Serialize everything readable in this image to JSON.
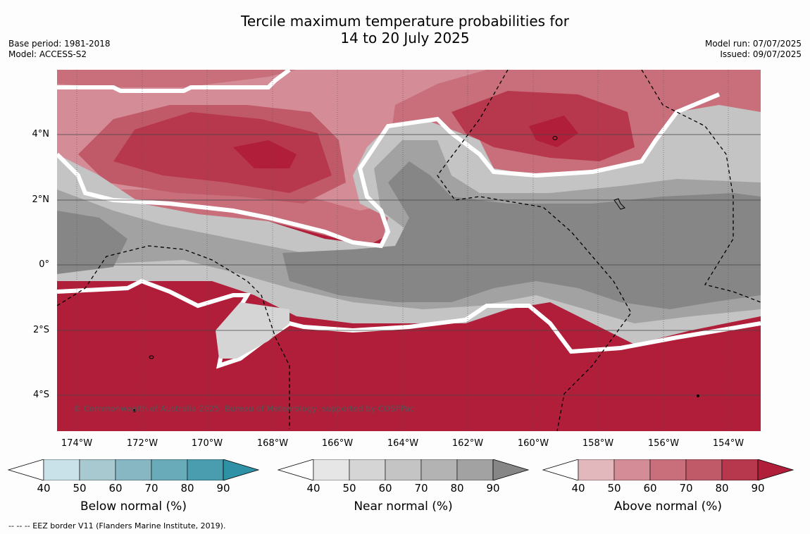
{
  "title_line1": "Tercile maximum temperature probabilities for",
  "title_line2": "14 to 20 July 2025",
  "base_period": "Base period: 1981-2018",
  "model": "Model: ACCESS-S2",
  "model_run": "Model run: 07/07/2025",
  "issued": "Issued: 09/07/2025",
  "copyright": "© Commonwealth of Australia 2025, Bureau of Meteorology, supported by COSPPac",
  "footnote": "--  --  -- EEZ border V11 (Flanders Marine Institute, 2019).",
  "lat_labels": [
    "4°N",
    "2°N",
    "0°",
    "2°S",
    "4°S"
  ],
  "lon_labels": [
    "174°W",
    "172°W",
    "170°W",
    "168°W",
    "166°W",
    "164°W",
    "162°W",
    "160°W",
    "158°W",
    "156°W",
    "154°W"
  ],
  "colorbars": [
    {
      "title": "Below normal (%)",
      "ticks": [
        "40",
        "50",
        "60",
        "70",
        "80",
        "90"
      ],
      "colors": [
        "#ffffff",
        "#c9e2e9",
        "#a8c9d0",
        "#88b7c4",
        "#6aabba",
        "#4a9daf",
        "#2f91a6"
      ]
    },
    {
      "title": "Near normal (%)",
      "ticks": [
        "40",
        "50",
        "60",
        "70",
        "80",
        "90"
      ],
      "colors": [
        "#ffffff",
        "#e6e6e6",
        "#d5d5d5",
        "#c4c4c4",
        "#b3b3b3",
        "#a2a2a2",
        "#868686"
      ]
    },
    {
      "title": "Above normal (%)",
      "ticks": [
        "40",
        "50",
        "60",
        "70",
        "80",
        "90"
      ],
      "colors": [
        "#ffffff",
        "#e3b8bc",
        "#d48d96",
        "#c86f7b",
        "#c05a68",
        "#b7384d",
        "#b01e3a"
      ]
    }
  ]
}
